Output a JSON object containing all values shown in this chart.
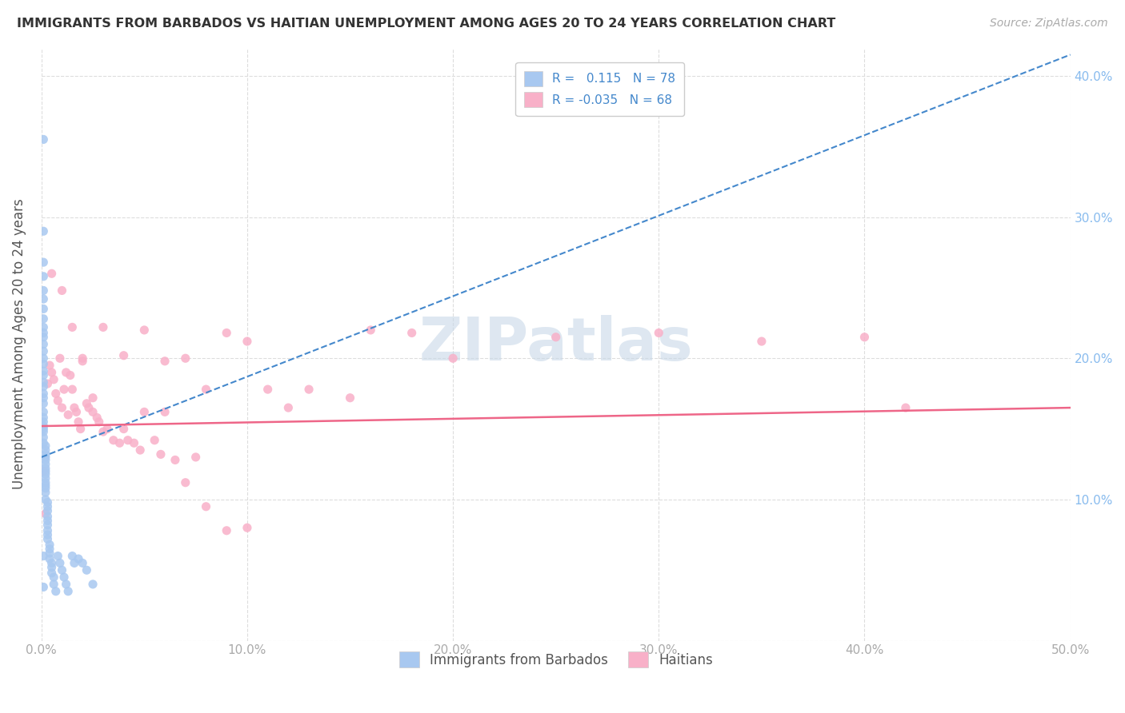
{
  "title": "IMMIGRANTS FROM BARBADOS VS HAITIAN UNEMPLOYMENT AMONG AGES 20 TO 24 YEARS CORRELATION CHART",
  "source": "Source: ZipAtlas.com",
  "ylabel": "Unemployment Among Ages 20 to 24 years",
  "xmin": 0.0,
  "xmax": 0.5,
  "ymin": 0.0,
  "ymax": 0.42,
  "scatter_color1": "#a8c8f0",
  "scatter_color2": "#f8b0c8",
  "trend_color1": "#4488cc",
  "trend_color2": "#ee6688",
  "watermark": "ZIPatlas",
  "watermark_color": "#c8d8e8",
  "legend_color1": "#a8c8f0",
  "legend_color2": "#f8b0c8",
  "blue_x": [
    0.001,
    0.001,
    0.001,
    0.001,
    0.001,
    0.001,
    0.001,
    0.001,
    0.001,
    0.001,
    0.001,
    0.001,
    0.001,
    0.001,
    0.001,
    0.001,
    0.001,
    0.001,
    0.001,
    0.001,
    0.001,
    0.001,
    0.001,
    0.001,
    0.001,
    0.001,
    0.001,
    0.001,
    0.001,
    0.001,
    0.002,
    0.002,
    0.002,
    0.002,
    0.002,
    0.002,
    0.002,
    0.002,
    0.002,
    0.002,
    0.002,
    0.002,
    0.002,
    0.002,
    0.002,
    0.003,
    0.003,
    0.003,
    0.003,
    0.003,
    0.003,
    0.003,
    0.003,
    0.003,
    0.004,
    0.004,
    0.004,
    0.004,
    0.005,
    0.005,
    0.005,
    0.006,
    0.006,
    0.007,
    0.008,
    0.009,
    0.01,
    0.011,
    0.012,
    0.013,
    0.015,
    0.016,
    0.018,
    0.02,
    0.022,
    0.025,
    0.001,
    0.001
  ],
  "blue_y": [
    0.355,
    0.29,
    0.268,
    0.258,
    0.248,
    0.242,
    0.235,
    0.228,
    0.222,
    0.218,
    0.215,
    0.21,
    0.205,
    0.2,
    0.196,
    0.191,
    0.188,
    0.183,
    0.18,
    0.175,
    0.172,
    0.168,
    0.162,
    0.158,
    0.155,
    0.152,
    0.15,
    0.148,
    0.144,
    0.14,
    0.138,
    0.135,
    0.132,
    0.13,
    0.128,
    0.125,
    0.122,
    0.12,
    0.118,
    0.115,
    0.112,
    0.11,
    0.108,
    0.105,
    0.1,
    0.098,
    0.095,
    0.092,
    0.088,
    0.085,
    0.082,
    0.078,
    0.075,
    0.072,
    0.068,
    0.065,
    0.062,
    0.058,
    0.055,
    0.052,
    0.048,
    0.045,
    0.04,
    0.035,
    0.06,
    0.055,
    0.05,
    0.045,
    0.04,
    0.035,
    0.06,
    0.055,
    0.058,
    0.055,
    0.05,
    0.04,
    0.06,
    0.038
  ],
  "pink_x": [
    0.001,
    0.002,
    0.003,
    0.004,
    0.005,
    0.006,
    0.007,
    0.008,
    0.009,
    0.01,
    0.011,
    0.012,
    0.013,
    0.014,
    0.015,
    0.016,
    0.017,
    0.018,
    0.019,
    0.02,
    0.022,
    0.023,
    0.025,
    0.027,
    0.028,
    0.03,
    0.032,
    0.035,
    0.038,
    0.04,
    0.042,
    0.045,
    0.048,
    0.05,
    0.055,
    0.058,
    0.06,
    0.065,
    0.07,
    0.075,
    0.08,
    0.09,
    0.1,
    0.11,
    0.12,
    0.15,
    0.18,
    0.2,
    0.25,
    0.3,
    0.35,
    0.4,
    0.005,
    0.01,
    0.015,
    0.02,
    0.025,
    0.03,
    0.04,
    0.05,
    0.06,
    0.07,
    0.08,
    0.09,
    0.1,
    0.13,
    0.16,
    0.42
  ],
  "pink_y": [
    0.12,
    0.09,
    0.182,
    0.195,
    0.19,
    0.185,
    0.175,
    0.17,
    0.2,
    0.165,
    0.178,
    0.19,
    0.16,
    0.188,
    0.178,
    0.165,
    0.162,
    0.155,
    0.15,
    0.2,
    0.168,
    0.165,
    0.162,
    0.158,
    0.155,
    0.148,
    0.15,
    0.142,
    0.14,
    0.15,
    0.142,
    0.14,
    0.135,
    0.162,
    0.142,
    0.132,
    0.162,
    0.128,
    0.2,
    0.13,
    0.178,
    0.218,
    0.212,
    0.178,
    0.165,
    0.172,
    0.218,
    0.2,
    0.215,
    0.218,
    0.212,
    0.215,
    0.26,
    0.248,
    0.222,
    0.198,
    0.172,
    0.222,
    0.202,
    0.22,
    0.198,
    0.112,
    0.095,
    0.078,
    0.08,
    0.178,
    0.22,
    0.165
  ],
  "blue_trend_x": [
    0.0,
    0.5
  ],
  "blue_trend_y": [
    0.13,
    0.415
  ],
  "pink_trend_x": [
    0.0,
    0.5
  ],
  "pink_trend_y": [
    0.152,
    0.165
  ]
}
